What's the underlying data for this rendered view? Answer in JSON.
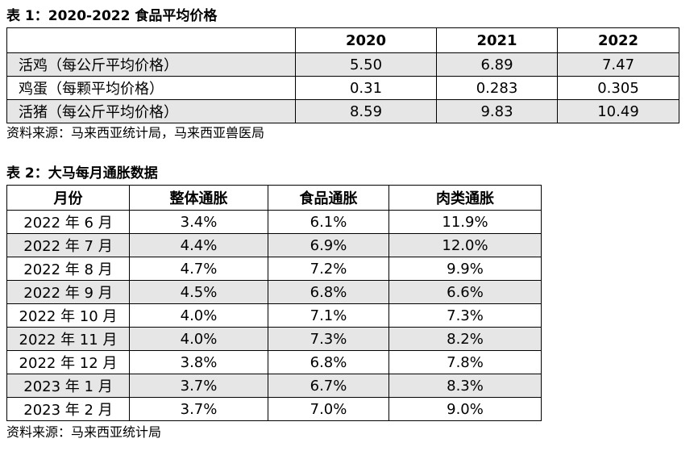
{
  "table1": {
    "title": "表 1：2020-2022 食品平均价格",
    "columns": [
      "",
      "2020",
      "2021",
      "2022"
    ],
    "rows": [
      {
        "label": "活鸡（每公斤平均价格）",
        "values": [
          "5.50",
          "6.89",
          "7.47"
        ]
      },
      {
        "label": "鸡蛋（每颗平均价格）",
        "values": [
          "0.31",
          "0.283",
          "0.305"
        ]
      },
      {
        "label": "活猪（每公斤平均价格）",
        "values": [
          "8.59",
          "9.83",
          "10.49"
        ]
      }
    ],
    "source": "资料来源：马来西亚统计局，马来西亚兽医局"
  },
  "table2": {
    "title": "表 2：大马每月通胀数据",
    "columns": [
      "月份",
      "整体通胀",
      "食品通胀",
      "肉类通胀"
    ],
    "rows": [
      [
        "2022 年 6 月",
        "3.4%",
        "6.1%",
        "11.9%"
      ],
      [
        "2022 年 7 月",
        "4.4%",
        "6.9%",
        "12.0%"
      ],
      [
        "2022 年 8 月",
        "4.7%",
        "7.2%",
        "9.9%"
      ],
      [
        "2022 年 9 月",
        "4.5%",
        "6.8%",
        "6.6%"
      ],
      [
        "2022 年 10 月",
        "4.0%",
        "7.1%",
        "7.3%"
      ],
      [
        "2022 年 11 月",
        "4.0%",
        "7.3%",
        "8.2%"
      ],
      [
        "2022 年 12 月",
        "3.8%",
        "6.8%",
        "7.8%"
      ],
      [
        "2023 年 1 月",
        "3.7%",
        "6.7%",
        "8.3%"
      ],
      [
        "2023 年 2 月",
        "3.7%",
        "7.0%",
        "9.0%"
      ]
    ],
    "source": "资料来源：马来西亚统计局"
  },
  "colors": {
    "shade": "#e6e6e6",
    "border": "#000000"
  }
}
